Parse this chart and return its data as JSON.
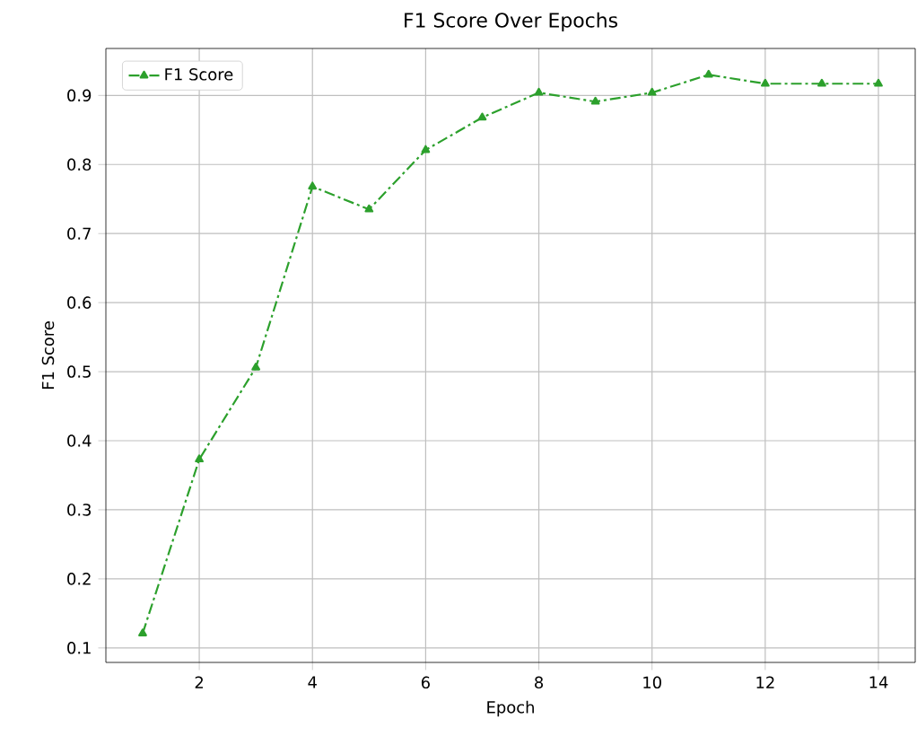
{
  "chart_data": {
    "type": "line",
    "title": "F1 Score Over Epochs",
    "xlabel": "Epoch",
    "ylabel": "F1 Score",
    "x": [
      1,
      2,
      3,
      4,
      5,
      6,
      7,
      8,
      9,
      10,
      11,
      12,
      13,
      14
    ],
    "series": [
      {
        "name": "F1 Score",
        "color": "#2ca02c",
        "values": [
          0.121,
          0.373,
          0.506,
          0.768,
          0.735,
          0.821,
          0.868,
          0.904,
          0.891,
          0.904,
          0.93,
          0.917,
          0.917,
          0.917
        ]
      }
    ],
    "xlim": [
      0.35,
      14.65
    ],
    "ylim": [
      0.079,
      0.968
    ],
    "xticks": [
      2,
      4,
      6,
      8,
      10,
      12,
      14
    ],
    "yticks": [
      0.1,
      0.2,
      0.3,
      0.4,
      0.5,
      0.6,
      0.7,
      0.8,
      0.9
    ],
    "grid": true,
    "legend": "top left",
    "marker": "triangle",
    "line_style": "dashdot"
  }
}
